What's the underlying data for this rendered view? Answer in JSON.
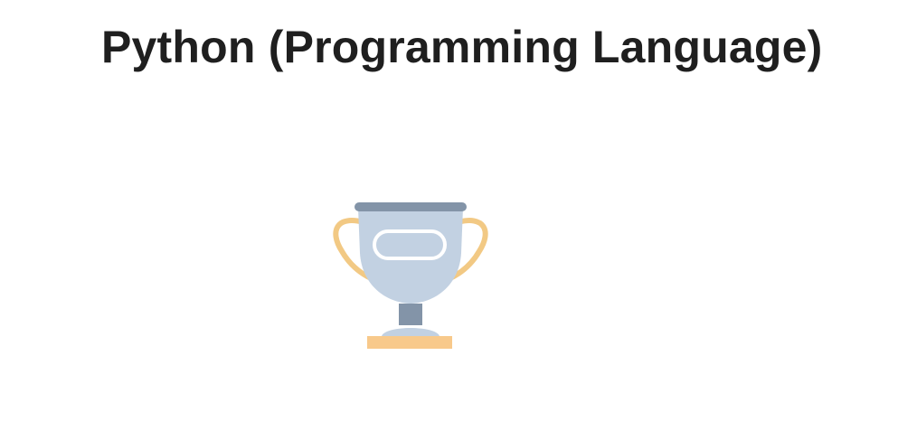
{
  "page": {
    "title": "Python (Programming Language)"
  },
  "illustration": {
    "icon": "trophy-icon",
    "colors": {
      "cup": "#c2d1e2",
      "cup_rim": "#8394a8",
      "stem": "#8394a8",
      "handles": "#f2c984",
      "base": "#f8c98b",
      "plate_outline": "#ffffff"
    }
  }
}
